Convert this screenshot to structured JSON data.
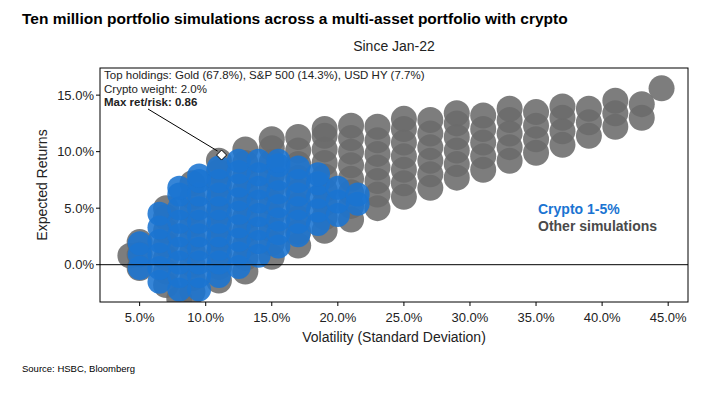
{
  "chart_data": {
    "type": "scatter",
    "title": "Ten million portfolio simulations across a multi-asset portfolio with crypto",
    "subtitle": "Since Jan-22",
    "x_label": "Volatility (Standard Deviation)",
    "y_label": "Expected Returns",
    "source": "Source: HSBC, Bloomberg",
    "xlim": [
      2.0,
      46.5
    ],
    "xticks": [
      {
        "value": 5,
        "label": "5.0%"
      },
      {
        "value": 10,
        "label": "10.0%"
      },
      {
        "value": 15,
        "label": "15.0%"
      },
      {
        "value": 20,
        "label": "20.0%"
      },
      {
        "value": 25,
        "label": "25.0%"
      },
      {
        "value": 30,
        "label": "30.0%"
      },
      {
        "value": 35,
        "label": "35.0%"
      },
      {
        "value": 40,
        "label": "40.0%"
      },
      {
        "value": 45,
        "label": "45.0%"
      }
    ],
    "ylim": [
      -3.3,
      17.4
    ],
    "yticks": [
      {
        "value": 0,
        "label": "0.0%"
      },
      {
        "value": 5,
        "label": "5.0%"
      },
      {
        "value": 10,
        "label": "10.0%"
      },
      {
        "value": 15,
        "label": "15.0%"
      }
    ],
    "hline": 0,
    "legend": "right",
    "marker": "circle",
    "series": [
      {
        "name": "Crypto 1-5%",
        "color": "#1a74d2",
        "x": [
          5,
          5,
          5,
          6.5,
          6.5,
          6.5,
          6.5,
          6.5,
          6.5,
          8,
          8,
          8,
          8,
          8,
          8,
          8,
          8,
          8,
          9.5,
          9.5,
          9.5,
          9.5,
          9.5,
          9.5,
          9.5,
          9.5,
          9.5,
          9.5,
          11,
          11,
          11,
          11,
          11,
          11,
          11,
          11,
          11,
          12.5,
          12.5,
          12.5,
          12.5,
          12.5,
          12.5,
          12.5,
          12.5,
          12.5,
          14,
          14,
          14,
          14,
          14,
          14,
          14,
          14,
          15.5,
          15.5,
          15.5,
          15.5,
          15.5,
          15.5,
          15.5,
          15.5,
          17,
          17,
          17,
          17,
          17,
          17,
          18.5,
          18.5,
          18.5,
          18.5,
          18.5,
          20,
          20,
          20,
          21.5,
          21.5
        ],
        "values": [
          -0.3,
          0.9,
          1.9,
          -1.5,
          -0.3,
          0.9,
          2.1,
          3.3,
          4.5,
          -2.2,
          -1,
          0.2,
          1.4,
          2.6,
          3.8,
          5,
          6.2,
          6.8,
          -2.2,
          -1,
          0.2,
          1.4,
          2.6,
          3.8,
          5,
          6.2,
          7.4,
          7.9,
          -1,
          0.2,
          1.4,
          2.6,
          3.8,
          5,
          6.2,
          7.4,
          8.6,
          -0.2,
          1,
          2.2,
          3.4,
          4.6,
          5.8,
          7,
          8.2,
          9.2,
          0.8,
          2,
          3.2,
          4.4,
          5.6,
          6.8,
          8,
          9.2,
          1.6,
          2.8,
          4,
          5.2,
          6.4,
          7.6,
          8.8,
          9.2,
          2.6,
          3.8,
          5,
          6.2,
          7.4,
          8.6,
          3.6,
          4.8,
          6,
          7.2,
          8,
          4.4,
          5.6,
          6.8,
          5.4,
          6.2
        ]
      },
      {
        "name": "Other simulations",
        "color": "#6b6b6b",
        "x": [
          4.3,
          5,
          5,
          5,
          7,
          7,
          7,
          7,
          7,
          7,
          7,
          8,
          9,
          9,
          9,
          9,
          9,
          9,
          9,
          9,
          9,
          11,
          11,
          11,
          11,
          11,
          11,
          11,
          11,
          11,
          11,
          13,
          13,
          13,
          13,
          13,
          13,
          13,
          13,
          13,
          13,
          15,
          15,
          15,
          15,
          15,
          15,
          15,
          15,
          15,
          15,
          17,
          17,
          17,
          17,
          17,
          17,
          17,
          17,
          17,
          19,
          19,
          19,
          19,
          19,
          19,
          19,
          19,
          19,
          21,
          21,
          21,
          21,
          21,
          21,
          21,
          21,
          23,
          23,
          23,
          23,
          23,
          23,
          23,
          25,
          25,
          25,
          25,
          25,
          25,
          25,
          27,
          27,
          27,
          27,
          27,
          27,
          29,
          29,
          29,
          29,
          29,
          29,
          31,
          31,
          31,
          31,
          31,
          33,
          33,
          33,
          33,
          33,
          35,
          35,
          35,
          35,
          37,
          37,
          37,
          37,
          39,
          39,
          39,
          41,
          41,
          41,
          43,
          43,
          44.5
        ],
        "values": [
          0.8,
          -0.3,
          0.9,
          2,
          -1.8,
          -0.6,
          0.6,
          1.8,
          3,
          4.2,
          5,
          -3,
          -2.4,
          -1.2,
          0,
          1.2,
          2.4,
          3.6,
          4.8,
          6,
          7.2,
          -1.4,
          -0.2,
          1,
          2.2,
          3.4,
          4.6,
          5.8,
          7,
          8.2,
          9.2,
          -0.6,
          0.6,
          1.8,
          3,
          4.2,
          5.4,
          6.6,
          7.8,
          9,
          10.2,
          0.7,
          1.9,
          3.1,
          4.3,
          5.5,
          6.7,
          7.9,
          9.1,
          10.3,
          11.1,
          1.7,
          2.9,
          4.1,
          5.3,
          6.5,
          7.7,
          8.9,
          10.1,
          11.3,
          3,
          4.2,
          5.4,
          6.6,
          7.8,
          9,
          10.2,
          11.4,
          12,
          4,
          5.2,
          6.4,
          7.6,
          8.8,
          10,
          11.2,
          12.3,
          5,
          6.2,
          7.4,
          8.6,
          9.8,
          11,
          12.2,
          6,
          7.2,
          8.4,
          9.6,
          10.8,
          12,
          12.9,
          6.8,
          8,
          9.2,
          10.4,
          11.6,
          12.8,
          7.7,
          8.9,
          10.1,
          11.3,
          12.5,
          13.4,
          8.4,
          9.6,
          10.8,
          12,
          13.2,
          9.2,
          10.4,
          11.6,
          12.8,
          13.8,
          9.9,
          11.1,
          12.3,
          13.5,
          10.6,
          11.8,
          13,
          14,
          11.4,
          12.6,
          13.8,
          12.2,
          13.4,
          14.5,
          13,
          14.2,
          15.6
        ]
      }
    ],
    "annotation": {
      "x": 11.2,
      "y": 9.7,
      "marker": "diamond",
      "text": [
        "Top holdings: Gold (67.8%), S&P 500 (14.3%), USD HY (7.7%)",
        "Crypto weight: 2.0%",
        "Max ret/risk: 0.86"
      ]
    }
  }
}
